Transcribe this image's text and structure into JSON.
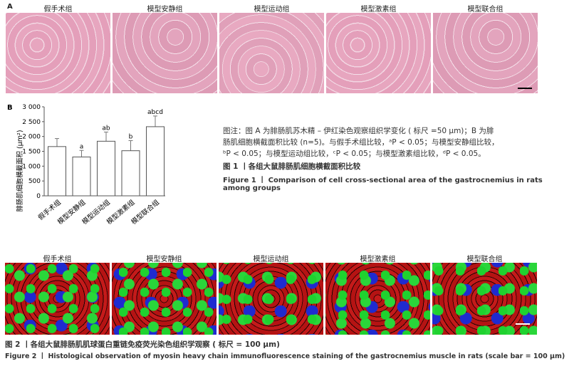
{
  "panel_a": {
    "label": "A",
    "groups": [
      "假手术组",
      "模型安静组",
      "模型运动组",
      "模型激素组",
      "模型联合组"
    ]
  },
  "chart_data": {
    "type": "bar",
    "panel_label": "B",
    "categories": [
      "假手术组",
      "模型安静组",
      "模型运动组",
      "模型激素组",
      "模型联合组"
    ],
    "values": [
      1660,
      1310,
      1840,
      1520,
      2330
    ],
    "errors": [
      270,
      220,
      310,
      340,
      360
    ],
    "annotations": [
      "",
      "a",
      "ab",
      "b",
      "abcd"
    ],
    "ylabel": "腓肠肌细胞横截面积 (μm²)",
    "ylim": [
      0,
      3000
    ],
    "yticks": [
      "0",
      "500",
      "1 000",
      "1 500",
      "2 000",
      "2 500",
      "3 000"
    ],
    "grid": false
  },
  "figure1": {
    "note_lines": [
      "图注：图 A 为腓肠肌苏木精 – 伊红染色观察组织学变化 ( 标尺 =50 μm)；B 为腓",
      "肠肌细胞横截面积比较 (n=5)。与假手术组比较，ᵃP < 0.05；与模型安静组比较，",
      "ᵇP < 0.05；与模型运动组比较，ᶜP < 0.05；与模型激素组比较，ᵈP < 0.05。"
    ],
    "title_cn": "图 1 丨各组大鼠腓肠肌细胞横截面积比较",
    "title_en_1": "Figure 1  丨  Comparison of cell cross-sectional area of the gastrocnemius in rats",
    "title_en_2": "among groups"
  },
  "figure2": {
    "groups": [
      "假手术组",
      "模型安静组",
      "模型运动组",
      "模型激素组",
      "模型联合组"
    ],
    "title_cn": "图 2 丨各组大鼠腓肠肌肌球蛋白重链免疫荧光染色组织学观察 ( 标尺 = 100 μm)",
    "title_en": "Figure 2  丨  Histological observation of myosin heavy chain immunofluorescence staining of the gastrocnemius muscle in rats (scale bar = 100 μm)"
  }
}
